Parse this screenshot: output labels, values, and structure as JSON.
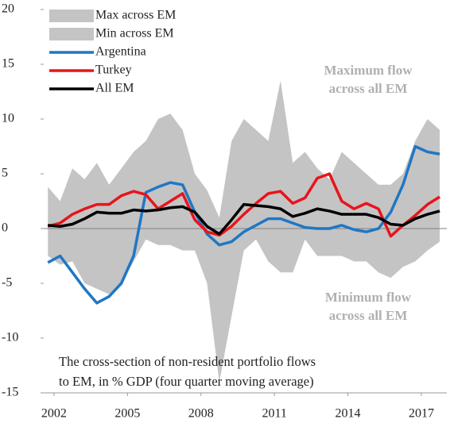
{
  "chart_data": {
    "type": "line",
    "x": [
      2001.75,
      2002.25,
      2002.75,
      2003.25,
      2003.75,
      2004.25,
      2004.75,
      2005.25,
      2005.75,
      2006.25,
      2006.75,
      2007.25,
      2007.75,
      2008.25,
      2008.75,
      2009.25,
      2009.75,
      2010.25,
      2010.75,
      2011.25,
      2011.75,
      2012.25,
      2012.75,
      2013.25,
      2013.75,
      2014.25,
      2014.75,
      2015.25,
      2015.75,
      2016.25,
      2016.75,
      2017.25,
      2017.75
    ],
    "series": [
      {
        "name": "Max across EM",
        "style": "area",
        "color": "#c4c4c4",
        "values": [
          3.8,
          2.5,
          5.5,
          4.5,
          6,
          4,
          5.5,
          7,
          8,
          10,
          10.5,
          9,
          5,
          3.5,
          1,
          8,
          10,
          9,
          8,
          13.5,
          6,
          7,
          5.5,
          4.5,
          7,
          6,
          5,
          4,
          4,
          5,
          8,
          10,
          9
        ]
      },
      {
        "name": "Min across EM",
        "style": "area",
        "color": "#c4c4c4",
        "values": [
          -2.5,
          -3.3,
          -3,
          -5,
          -5.5,
          -6,
          -5,
          -3,
          -1,
          -1.5,
          -1.5,
          -2,
          -2,
          -5,
          -14,
          -8,
          -2,
          -1,
          -3,
          -4,
          -4,
          -1,
          -2.5,
          -2.5,
          -2.5,
          -3,
          -3,
          -4,
          -4.5,
          -3.5,
          -3,
          -2,
          -1.2
        ]
      },
      {
        "name": "Argentina",
        "style": "line",
        "color": "#1f77c4",
        "values": [
          -3.1,
          -2.5,
          -4,
          -5.5,
          -6.8,
          -6.2,
          -5,
          -2.5,
          3.3,
          3.8,
          4.2,
          4,
          1.5,
          -0.5,
          -1.5,
          -1.2,
          -0.3,
          0.3,
          0.9,
          0.9,
          0.5,
          0.1,
          0,
          0,
          0.3,
          -0.1,
          -0.3,
          0,
          1.5,
          4,
          7.5,
          7,
          6.8
        ]
      },
      {
        "name": "Turkey",
        "style": "line",
        "color": "#e8141c",
        "values": [
          0.2,
          0.5,
          1.3,
          1.8,
          2.2,
          2.2,
          3.0,
          3.4,
          3.1,
          1.8,
          2.5,
          3.2,
          0.8,
          -0.3,
          -0.6,
          0.2,
          1.3,
          2.3,
          3.2,
          3.4,
          2.3,
          2.8,
          4.6,
          5.0,
          2.5,
          1.8,
          2.3,
          1.8,
          -0.7,
          0.3,
          1.2,
          2.2,
          2.9
        ]
      },
      {
        "name": "All EM",
        "style": "line",
        "color": "#000000",
        "values": [
          0.3,
          0.2,
          0.4,
          0.9,
          1.5,
          1.4,
          1.4,
          1.7,
          1.6,
          1.7,
          1.9,
          2.0,
          1.5,
          0.2,
          -0.5,
          0.8,
          2.2,
          2.1,
          2.0,
          1.8,
          1.1,
          1.4,
          1.8,
          1.6,
          1.3,
          1.3,
          1.3,
          1.0,
          0.4,
          0.3,
          0.9,
          1.3,
          1.6
        ]
      }
    ],
    "xlim": [
      2001.58,
      2018.04
    ],
    "xticks": [
      2002,
      2005,
      2008,
      2011,
      2014,
      2017
    ],
    "ylim": [
      -15,
      20
    ],
    "yticks": [
      -15,
      -10,
      -5,
      0,
      5,
      10,
      15,
      20
    ],
    "zero_line": true,
    "legend": "top-left",
    "annotations": [
      {
        "lines": [
          "Maximum flow",
          "across all EM"
        ]
      },
      {
        "lines": [
          "Minimum flow",
          "across all EM"
        ]
      },
      {
        "lines": [
          "The cross-section of non-resident portfolio flows",
          "to EM, in % GDP (four quarter moving average)"
        ]
      }
    ]
  }
}
